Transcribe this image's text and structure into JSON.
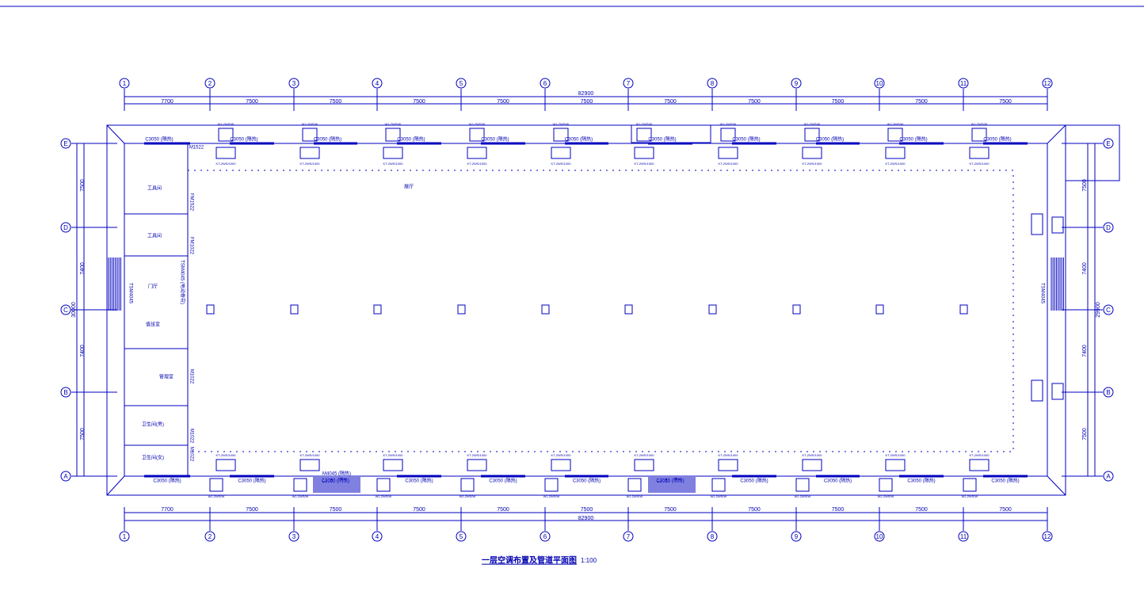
{
  "axes": {
    "columns": [
      "1",
      "2",
      "3",
      "4",
      "5",
      "6",
      "7",
      "8",
      "9",
      "10",
      "11",
      "12"
    ],
    "rows": [
      "E",
      "D",
      "C",
      "B",
      "A"
    ]
  },
  "dimensions": {
    "total": "82900",
    "spans": [
      "7700",
      "7500",
      "7500",
      "7500",
      "7500",
      "7500",
      "7500",
      "7500",
      "7500",
      "7500",
      "7500"
    ],
    "left": [
      "7500",
      "7400",
      "7400",
      "7500"
    ],
    "left_total": "30000",
    "right": [
      "7500",
      "7400",
      "7400",
      "7500"
    ],
    "right_total": "29900"
  },
  "labels": {
    "window": "C3050 (隔热)",
    "indoor_unit": "KT-2WS/1000",
    "outdoor_unit": "WJ-2WS/W",
    "hall": "展厅"
  },
  "rooms": [
    "工具间",
    "工具间",
    "门厅",
    "值班室",
    "管理室",
    "卫生间(男)",
    "卫生间(女)"
  ],
  "doors": {
    "top_left": "M1522",
    "room1": "FM1522",
    "room2": "FM1022",
    "left_entry": "TSM4045",
    "corridor": "TSM4045 (电动卷帘)",
    "mgmt": "M1022",
    "wc": "M1022",
    "wc2": "M1022",
    "bottom": "M4045 (隔热)",
    "right_entry": "TSM4045"
  },
  "title": "一层空调布置及管道平面图",
  "scale": "1:100"
}
